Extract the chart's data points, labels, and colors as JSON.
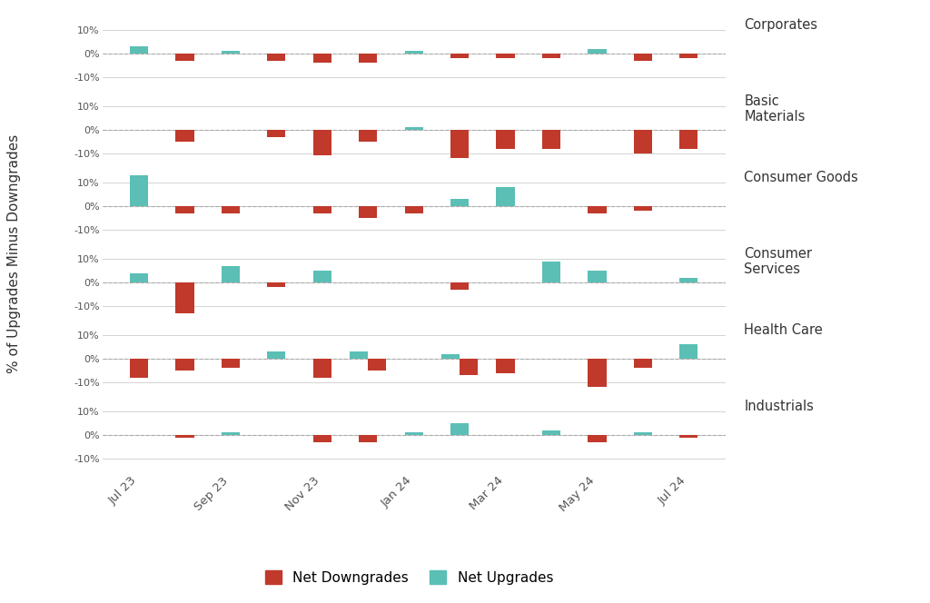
{
  "sectors": [
    "Corporates",
    "Basic\nMaterials",
    "Consumer Goods",
    "Consumer\nServices",
    "Health Care",
    "Industrials"
  ],
  "sector_labels_right": [
    "Corporates",
    "Basic\nMaterials",
    "Consumer Goods",
    "Consumer\nServices",
    "Health Care",
    "Industrials"
  ],
  "x_tick_positions": [
    0,
    2,
    4,
    6,
    8,
    10,
    12
  ],
  "x_tick_labels": [
    "Jul 23",
    "Sep 23",
    "Nov 23",
    "Jan 24",
    "Mar 24",
    "May 24",
    "Jul 24"
  ],
  "n_periods": 13,
  "color_down": "#c0392b",
  "color_up": "#5bbfb5",
  "bar_width": 0.4,
  "ylim": [
    -15,
    15
  ],
  "yticks": [
    -10,
    0,
    10
  ],
  "ytick_labels": [
    "-10%",
    "0%",
    "10%"
  ],
  "ylabel": "% of Upgrades Minus Downgrades",
  "background_color": "#ffffff",
  "grid_color": "#cccccc",
  "zero_line_color": "#aaaaaa",
  "legend_label_down": "Net Downgrades",
  "legend_label_up": "Net Upgrades",
  "data": {
    "Corporates": {
      "upgrades": [
        3,
        0,
        1,
        0,
        0,
        0,
        1,
        0,
        0,
        0,
        2,
        0,
        0
      ],
      "downgrades": [
        0,
        -3,
        0,
        -3,
        -4,
        -4,
        0,
        -2,
        -2,
        -2,
        0,
        -3,
        -2
      ]
    },
    "Basic\nMaterials": {
      "upgrades": [
        0,
        0,
        0,
        0,
        0,
        0,
        1,
        0,
        0,
        0,
        0,
        0,
        0
      ],
      "downgrades": [
        0,
        -5,
        0,
        -3,
        -11,
        -5,
        0,
        -12,
        -8,
        -8,
        0,
        -10,
        -8
      ]
    },
    "Consumer Goods": {
      "upgrades": [
        13,
        0,
        0,
        0,
        0,
        0,
        0,
        3,
        8,
        0,
        0,
        0,
        0
      ],
      "downgrades": [
        0,
        -3,
        -3,
        0,
        -3,
        -5,
        -3,
        0,
        0,
        0,
        -3,
        -2,
        0
      ]
    },
    "Consumer\nServices": {
      "upgrades": [
        4,
        0,
        7,
        0,
        5,
        0,
        0,
        0,
        0,
        9,
        5,
        0,
        2
      ],
      "downgrades": [
        0,
        -13,
        0,
        -2,
        0,
        0,
        0,
        -3,
        0,
        0,
        0,
        0,
        0
      ]
    },
    "Health Care": {
      "upgrades": [
        0,
        0,
        0,
        3,
        0,
        3,
        0,
        2,
        0,
        0,
        0,
        0,
        6
      ],
      "downgrades": [
        -8,
        -5,
        -4,
        0,
        -8,
        -5,
        0,
        -7,
        -6,
        0,
        -12,
        -4,
        0
      ]
    },
    "Industrials": {
      "upgrades": [
        0,
        0,
        1,
        0,
        0,
        0,
        1,
        5,
        0,
        2,
        0,
        1,
        0
      ],
      "downgrades": [
        0,
        -1,
        0,
        0,
        -3,
        -3,
        0,
        0,
        0,
        0,
        -3,
        0,
        -1
      ]
    }
  }
}
